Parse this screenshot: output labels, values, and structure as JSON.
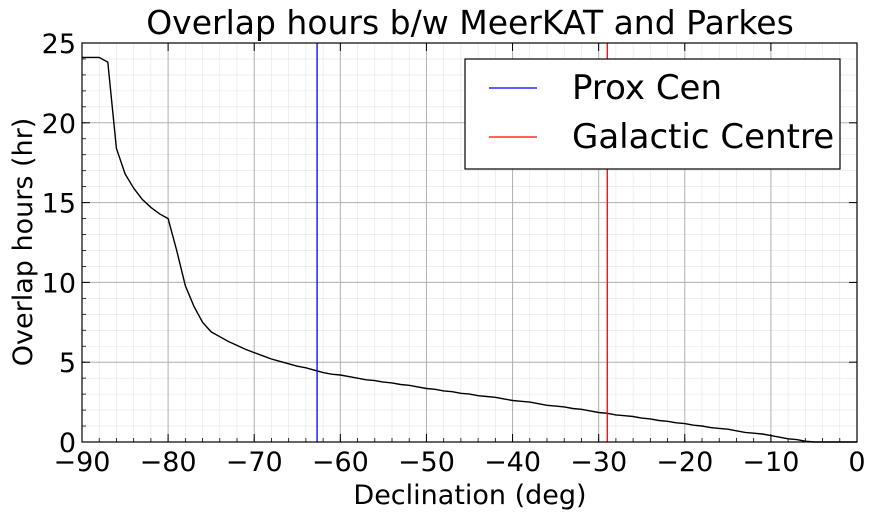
{
  "chart_data": {
    "type": "line",
    "title": "Overlap hours b/w MeerKAT and Parkes",
    "xlabel": "Declination (deg)",
    "ylabel": "Overlap hours (hr)",
    "xlim": [
      -90,
      0
    ],
    "ylim": [
      0,
      25
    ],
    "x_ticks": [
      -90,
      -80,
      -70,
      -60,
      -50,
      -40,
      -30,
      -20,
      -10,
      0
    ],
    "x_tick_labels": [
      "−90",
      "−80",
      "−70",
      "−60",
      "−50",
      "−40",
      "−30",
      "−20",
      "−10",
      "0"
    ],
    "y_ticks": [
      0,
      5,
      10,
      15,
      20,
      25
    ],
    "y_tick_labels": [
      "0",
      "5",
      "10",
      "15",
      "20",
      "25"
    ],
    "grid": true,
    "minor_grid": true,
    "legend_position": "top-right",
    "series": [
      {
        "color": "#000000",
        "x": [
          -90,
          -88,
          -87,
          -86,
          -85,
          -84,
          -83,
          -82,
          -81,
          -80,
          -79,
          -78,
          -77,
          -76,
          -75,
          -74,
          -73,
          -72,
          -71,
          -70,
          -69,
          -68,
          -67,
          -66,
          -65,
          -64,
          -63,
          -62,
          -61,
          -60,
          -59,
          -58,
          -57,
          -56,
          -55,
          -54,
          -53,
          -52,
          -51,
          -50,
          -49,
          -48,
          -47,
          -46,
          -45,
          -44,
          -43,
          -42,
          -41,
          -40,
          -39,
          -38,
          -37,
          -36,
          -35,
          -34,
          -33,
          -32,
          -31,
          -30,
          -29,
          -28,
          -27,
          -26,
          -25,
          -24,
          -23,
          -22,
          -21,
          -20,
          -19,
          -18,
          -17,
          -16,
          -15,
          -14,
          -13,
          -12,
          -11,
          -10,
          -9,
          -8,
          -7,
          -6,
          -5,
          -4,
          -3,
          -2,
          -1,
          0
        ],
        "y": [
          24.1,
          24.1,
          23.8,
          18.4,
          16.8,
          15.9,
          15.2,
          14.7,
          14.3,
          14.0,
          12.0,
          9.8,
          8.5,
          7.5,
          6.9,
          6.6,
          6.3,
          6.05,
          5.8,
          5.6,
          5.4,
          5.2,
          5.05,
          4.9,
          4.75,
          4.65,
          4.5,
          4.35,
          4.25,
          4.2,
          4.1,
          4.0,
          3.9,
          3.85,
          3.75,
          3.7,
          3.6,
          3.55,
          3.45,
          3.35,
          3.3,
          3.2,
          3.15,
          3.05,
          3.0,
          2.9,
          2.85,
          2.8,
          2.7,
          2.6,
          2.55,
          2.5,
          2.4,
          2.3,
          2.25,
          2.2,
          2.1,
          2.05,
          1.95,
          1.85,
          1.8,
          1.7,
          1.65,
          1.6,
          1.5,
          1.45,
          1.35,
          1.3,
          1.2,
          1.15,
          1.05,
          1.0,
          0.9,
          0.85,
          0.8,
          0.7,
          0.6,
          0.55,
          0.5,
          0.4,
          0.3,
          0.2,
          0.15,
          0.05,
          0.0,
          0.0,
          0.0,
          0.0,
          0.0,
          0.0
        ]
      }
    ],
    "vlines": [
      {
        "name": "Prox Cen",
        "x": -62.7,
        "color": "#0000ff"
      },
      {
        "name": "Galactic Centre",
        "x": -29.0,
        "color": "#ff0000"
      }
    ]
  }
}
